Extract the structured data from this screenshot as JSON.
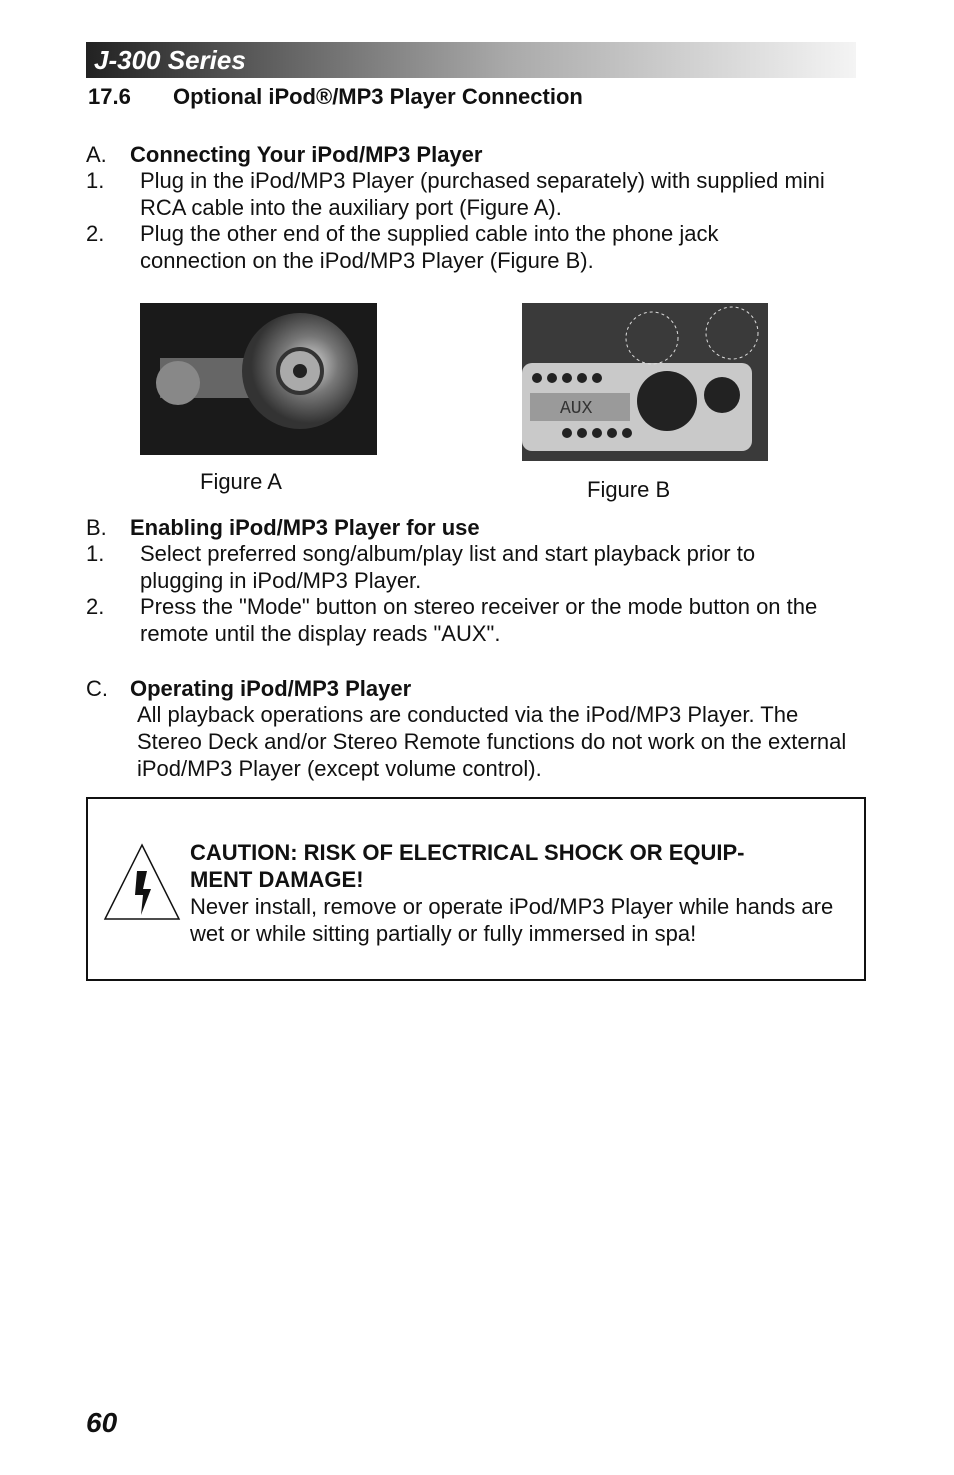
{
  "header": {
    "series": "J-300 Series"
  },
  "section": {
    "number": "17.6",
    "title": "Optional iPod®/MP3 Player Connection"
  },
  "subsections": [
    {
      "letter": "A.",
      "title": "Connecting Your iPod/MP3 Player",
      "items": [
        {
          "number": "1.",
          "text": "Plug in the iPod/MP3 Player (purchased separately) with supplied mini RCA cable into the auxiliary port (Figure A)."
        },
        {
          "number": "2.",
          "text": "Plug the other end of the supplied cable into the phone jack connection on the iPod/MP3 Player (Figure B)."
        }
      ]
    },
    {
      "letter": "B.",
      "title": "Enabling iPod/MP3 Player for use",
      "items": [
        {
          "number": "1.",
          "text": "Select preferred song/album/play list and start playback prior to plugging in iPod/MP3 Player."
        },
        {
          "number": "2.",
          "text": "Press the \"Mode\" button on stereo receiver or the mode button on the remote until the display reads \"AUX\"."
        }
      ]
    },
    {
      "letter": "C.",
      "title": "Operating iPod/MP3 Player",
      "paragraph": "All playback operations are conducted via the iPod/MP3 Player. The Stereo Deck and/or Stereo Remote functions do not work on the external iPod/MP3 Player (except volume control)."
    }
  ],
  "figures": [
    {
      "caption": "Figure A"
    },
    {
      "caption": "Figure B"
    }
  ],
  "caution": {
    "title_lines": [
      "CAUTION: RISK OF ELECTRICAL SHOCK OR EQUIP-",
      "MENT DAMAGE!"
    ],
    "text": "Never install, remove or operate iPod/MP3 Player while hands are wet or while sitting partially or fully immersed in spa!"
  },
  "page_number": "60"
}
